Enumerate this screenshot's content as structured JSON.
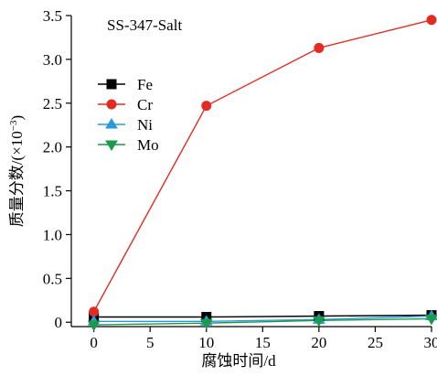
{
  "chart_data": {
    "type": "line",
    "title": "SS-347-Salt",
    "xlabel": "腐蚀时间/d",
    "ylabel_main": "质量分数/(×10",
    "ylabel_exp": "−3",
    "ylabel_close": ")",
    "x": [
      0,
      10,
      20,
      30
    ],
    "xlim": [
      -2,
      30
    ],
    "ylim": [
      -0.05,
      3.5
    ],
    "x_ticks": [
      0,
      5,
      10,
      15,
      20,
      25,
      30
    ],
    "x_tick_labels": [
      "0",
      "5",
      "10",
      "15",
      "20",
      "25",
      "30"
    ],
    "y_ticks": [
      0,
      0.5,
      1.0,
      1.5,
      2.0,
      2.5,
      3.0,
      3.5
    ],
    "y_tick_labels": [
      "0",
      "0.5",
      "1.0",
      "1.5",
      "2.0",
      "2.5",
      "3.0",
      "3.5"
    ],
    "grid": false,
    "legend_position": "center-left",
    "series": [
      {
        "name": "Fe",
        "values": [
          0.06,
          0.06,
          0.07,
          0.08
        ],
        "color": "#000000",
        "marker": "square"
      },
      {
        "name": "Cr",
        "values": [
          0.12,
          2.47,
          3.13,
          3.45
        ],
        "color": "#e32b24",
        "marker": "circle"
      },
      {
        "name": "Ni",
        "values": [
          0.01,
          0.01,
          0.03,
          0.07
        ],
        "color": "#2a9bd8",
        "marker": "triangle-up"
      },
      {
        "name": "Mo",
        "values": [
          -0.03,
          -0.01,
          0.02,
          0.04
        ],
        "color": "#1a9a4a",
        "marker": "triangle-down"
      }
    ]
  }
}
